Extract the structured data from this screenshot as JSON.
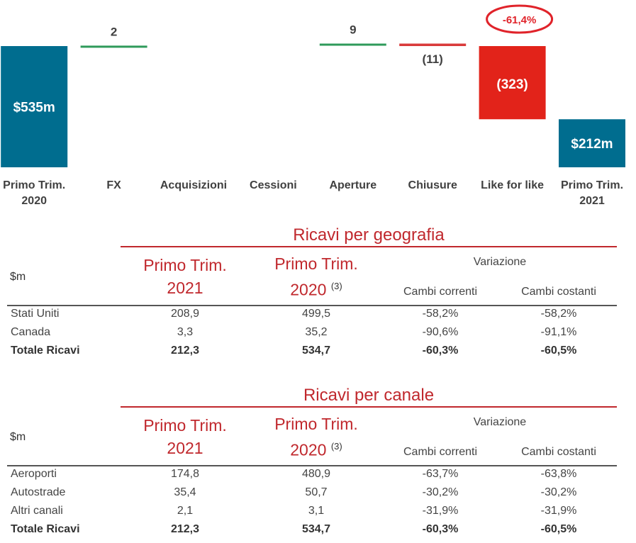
{
  "chart_data": {
    "type": "waterfall",
    "categories": [
      [
        "Primo Trim.",
        "2020"
      ],
      [
        "FX"
      ],
      [
        "Acquisizioni"
      ],
      [
        "Cessioni"
      ],
      [
        "Aperture"
      ],
      [
        "Chiusure"
      ],
      [
        "Like for like"
      ],
      [
        "Primo Trim.",
        "2021"
      ]
    ],
    "values": [
      535,
      2,
      0,
      0,
      9,
      -11,
      -323,
      212
    ],
    "bar_kinds": [
      "total",
      "delta",
      "delta",
      "delta",
      "delta",
      "delta",
      "delta",
      "total"
    ],
    "labels": [
      "$535m",
      "2",
      "",
      "",
      "9",
      "(11)",
      "(323)",
      "$212m"
    ],
    "callout": "-61,4%",
    "colors": {
      "total": "#006d8f",
      "positive": "#2e9a5a",
      "negative_line": "#d93a3a",
      "negative_bar": "#e2231a",
      "callout": "#e0232a"
    }
  },
  "geo_table": {
    "title": "Ricavi per geografia",
    "unit": "$m",
    "col1": [
      "Primo Trim.",
      "2021"
    ],
    "col2": [
      "Primo Trim.",
      "2020"
    ],
    "col2_note": "(3)",
    "variation": "Variazione",
    "sub1": "Cambi correnti",
    "sub2": "Cambi costanti",
    "rows": [
      {
        "label": "Stati Uniti",
        "v1": "208,9",
        "v2": "499,5",
        "v3": "-58,2%",
        "v4": "-58,2%"
      },
      {
        "label": "Canada",
        "v1": "3,3",
        "v2": "35,2",
        "v3": "-90,6%",
        "v4": "-91,1%"
      },
      {
        "label": "Totale Ricavi",
        "v1": "212,3",
        "v2": "534,7",
        "v3": "-60,3%",
        "v4": "-60,5%"
      }
    ]
  },
  "channel_table": {
    "title": "Ricavi per canale",
    "unit": "$m",
    "col1": [
      "Primo Trim.",
      "2021"
    ],
    "col2": [
      "Primo Trim.",
      "2020"
    ],
    "col2_note": "(3)",
    "variation": "Variazione",
    "sub1": "Cambi correnti",
    "sub2": "Cambi costanti",
    "rows": [
      {
        "label": "Aeroporti",
        "v1": "174,8",
        "v2": "480,9",
        "v3": "-63,7%",
        "v4": "-63,8%"
      },
      {
        "label": "Autostrade",
        "v1": "35,4",
        "v2": "50,7",
        "v3": "-30,2%",
        "v4": "-30,2%"
      },
      {
        "label": "Altri canali",
        "v1": "2,1",
        "v2": "3,1",
        "v3": "-31,9%",
        "v4": "-31,9%"
      },
      {
        "label": "Totale Ricavi",
        "v1": "212,3",
        "v2": "534,7",
        "v3": "-60,3%",
        "v4": "-60,5%"
      }
    ]
  }
}
